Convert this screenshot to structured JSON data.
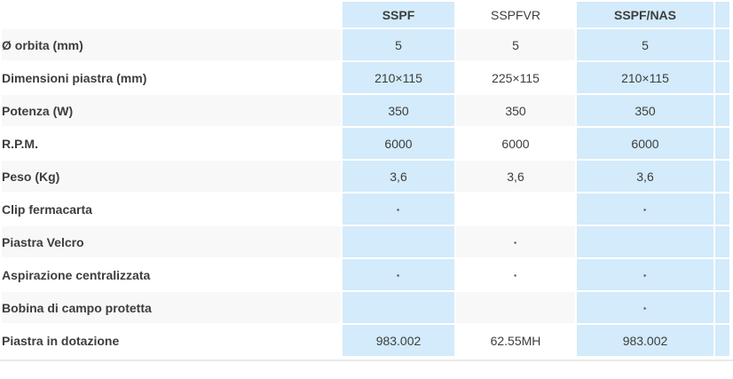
{
  "table": {
    "corner_label": "",
    "columns": [
      {
        "label": "SSPF",
        "highlight": true
      },
      {
        "label": "SSPFVR",
        "highlight": false
      },
      {
        "label": "SSPF/NAS",
        "highlight": true
      }
    ],
    "rows": [
      {
        "label": "Ø orbita (mm)",
        "values": [
          "5",
          "5",
          "5"
        ]
      },
      {
        "label": "Dimensioni piastra (mm)",
        "values": [
          "210×115",
          "225×115",
          "210×115"
        ]
      },
      {
        "label": "Potenza (W)",
        "values": [
          "350",
          "350",
          "350"
        ]
      },
      {
        "label": "R.P.M.",
        "values": [
          "6000",
          "6000",
          "6000"
        ]
      },
      {
        "label": "Peso (Kg)",
        "values": [
          "3,6",
          "3,6",
          "3,6"
        ]
      },
      {
        "label": "Clip fermacarta",
        "values": [
          "·",
          "",
          "·"
        ]
      },
      {
        "label": "Piastra Velcro",
        "values": [
          "",
          "·",
          ""
        ]
      },
      {
        "label": "Aspirazione centralizzata",
        "values": [
          "·",
          "·",
          "·"
        ]
      },
      {
        "label": "Bobina di campo protetta",
        "values": [
          "",
          "",
          "·"
        ]
      },
      {
        "label": "Piastra in dotazione",
        "values": [
          "983.002",
          "62.55MH",
          "983.002"
        ]
      }
    ]
  },
  "colors": {
    "highlight_blue": "#d3ebfb",
    "row_stripe": "#f8f8f8",
    "text": "#3d3d3d",
    "bottom_rule": "#e9e9e9"
  }
}
